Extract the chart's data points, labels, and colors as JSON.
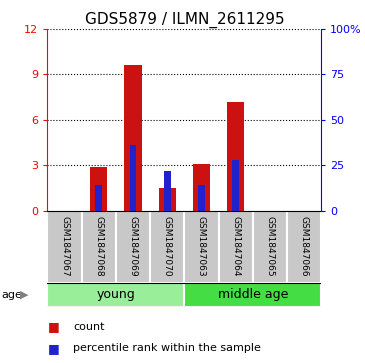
{
  "title": "GDS5879 / ILMN_2611295",
  "samples": [
    "GSM1847067",
    "GSM1847068",
    "GSM1847069",
    "GSM1847070",
    "GSM1847063",
    "GSM1847064",
    "GSM1847065",
    "GSM1847066"
  ],
  "counts": [
    0,
    2.85,
    9.65,
    1.5,
    3.1,
    7.2,
    0,
    0
  ],
  "percentile_ranks": [
    0,
    14,
    36,
    22,
    14,
    28,
    0,
    0
  ],
  "n_young": 4,
  "n_middle": 4,
  "left_ylim": [
    0,
    12
  ],
  "right_ylim": [
    0,
    100
  ],
  "left_yticks": [
    0,
    3,
    6,
    9,
    12
  ],
  "right_yticks": [
    0,
    25,
    50,
    75,
    100
  ],
  "bar_color": "#cc1111",
  "percentile_color": "#2222cc",
  "bg_color_sample": "#c8c8c8",
  "bg_color_young": "#99ee99",
  "bg_color_middle": "#44dd44",
  "legend_count_label": "count",
  "legend_pct_label": "percentile rank within the sample",
  "age_label": "age",
  "young_label": "young",
  "middle_label": "middle age",
  "bar_width": 0.5,
  "pct_bar_width": 0.2
}
